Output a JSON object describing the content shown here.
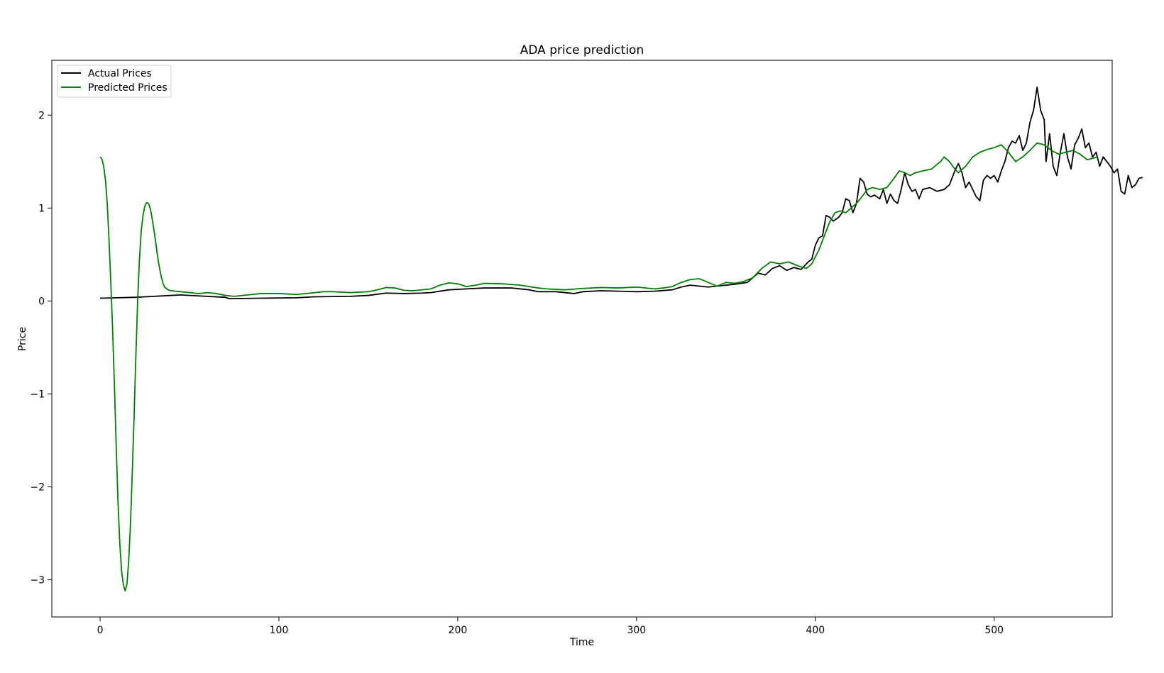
{
  "chart_data": {
    "type": "line",
    "title": "ADA price prediction",
    "xlabel": "Time",
    "ylabel": "Price",
    "xlim": [
      -27,
      566
    ],
    "ylim": [
      -3.4,
      2.59
    ],
    "xticks": [
      0,
      100,
      200,
      300,
      400,
      500
    ],
    "yticks": [
      -3,
      -2,
      -1,
      0,
      1,
      2
    ],
    "xtick_labels": [
      "0",
      "100",
      "200",
      "300",
      "400",
      "500"
    ],
    "ytick_labels": [
      "−3",
      "−2",
      "−1",
      "0",
      "1",
      "2"
    ],
    "grid": false,
    "legend_position": "top-left",
    "series": [
      {
        "name": "Actual Prices",
        "color": "#000000",
        "points": [
          [
            0,
            0.03
          ],
          [
            10,
            0.035
          ],
          [
            20,
            0.04
          ],
          [
            30,
            0.05
          ],
          [
            40,
            0.06
          ],
          [
            45,
            0.065
          ],
          [
            55,
            0.055
          ],
          [
            70,
            0.04
          ],
          [
            72,
            0.025
          ],
          [
            90,
            0.03
          ],
          [
            110,
            0.035
          ],
          [
            120,
            0.045
          ],
          [
            140,
            0.05
          ],
          [
            150,
            0.06
          ],
          [
            160,
            0.085
          ],
          [
            170,
            0.08
          ],
          [
            180,
            0.085
          ],
          [
            185,
            0.09
          ],
          [
            195,
            0.12
          ],
          [
            205,
            0.13
          ],
          [
            215,
            0.14
          ],
          [
            230,
            0.14
          ],
          [
            240,
            0.12
          ],
          [
            245,
            0.1
          ],
          [
            255,
            0.1
          ],
          [
            265,
            0.08
          ],
          [
            270,
            0.1
          ],
          [
            280,
            0.11
          ],
          [
            290,
            0.105
          ],
          [
            300,
            0.1
          ],
          [
            310,
            0.105
          ],
          [
            320,
            0.12
          ],
          [
            325,
            0.15
          ],
          [
            330,
            0.17
          ],
          [
            340,
            0.15
          ],
          [
            350,
            0.17
          ],
          [
            355,
            0.18
          ],
          [
            362,
            0.2
          ],
          [
            368,
            0.3
          ],
          [
            372,
            0.28
          ],
          [
            376,
            0.35
          ],
          [
            380,
            0.38
          ],
          [
            384,
            0.33
          ],
          [
            388,
            0.36
          ],
          [
            392,
            0.34
          ],
          [
            396,
            0.42
          ],
          [
            398,
            0.45
          ],
          [
            400,
            0.6
          ],
          [
            402,
            0.68
          ],
          [
            404,
            0.7
          ],
          [
            406,
            0.92
          ],
          [
            408,
            0.9
          ],
          [
            410,
            0.86
          ],
          [
            413,
            0.9
          ],
          [
            415,
            0.95
          ],
          [
            417,
            1.1
          ],
          [
            419,
            1.08
          ],
          [
            421,
            0.95
          ],
          [
            423,
            1.05
          ],
          [
            425,
            1.32
          ],
          [
            427,
            1.28
          ],
          [
            429,
            1.15
          ],
          [
            431,
            1.12
          ],
          [
            433,
            1.14
          ],
          [
            436,
            1.1
          ],
          [
            438,
            1.2
          ],
          [
            440,
            1.05
          ],
          [
            442,
            1.15
          ],
          [
            444,
            1.08
          ],
          [
            446,
            1.05
          ],
          [
            448,
            1.2
          ],
          [
            450,
            1.38
          ],
          [
            452,
            1.25
          ],
          [
            454,
            1.18
          ],
          [
            456,
            1.2
          ],
          [
            458,
            1.1
          ],
          [
            460,
            1.2
          ],
          [
            464,
            1.22
          ],
          [
            468,
            1.18
          ],
          [
            472,
            1.2
          ],
          [
            475,
            1.25
          ],
          [
            478,
            1.4
          ],
          [
            480,
            1.48
          ],
          [
            482,
            1.38
          ],
          [
            484,
            1.22
          ],
          [
            486,
            1.28
          ],
          [
            488,
            1.2
          ],
          [
            490,
            1.12
          ],
          [
            492,
            1.08
          ],
          [
            494,
            1.3
          ],
          [
            496,
            1.35
          ],
          [
            498,
            1.32
          ],
          [
            500,
            1.35
          ],
          [
            502,
            1.28
          ],
          [
            504,
            1.4
          ],
          [
            506,
            1.5
          ],
          [
            508,
            1.65
          ],
          [
            510,
            1.72
          ],
          [
            512,
            1.7
          ],
          [
            514,
            1.78
          ],
          [
            516,
            1.62
          ],
          [
            518,
            1.7
          ],
          [
            520,
            1.92
          ],
          [
            522,
            2.05
          ],
          [
            524,
            2.3
          ],
          [
            526,
            2.05
          ],
          [
            528,
            1.95
          ],
          [
            529,
            1.5
          ],
          [
            531,
            1.8
          ],
          [
            533,
            1.45
          ],
          [
            535,
            1.35
          ],
          [
            537,
            1.6
          ],
          [
            539,
            1.8
          ],
          [
            541,
            1.55
          ],
          [
            543,
            1.42
          ],
          [
            545,
            1.68
          ],
          [
            547,
            1.75
          ],
          [
            549,
            1.85
          ],
          [
            551,
            1.65
          ],
          [
            553,
            1.7
          ],
          [
            555,
            1.55
          ],
          [
            557,
            1.6
          ],
          [
            559,
            1.45
          ],
          [
            561,
            1.55
          ],
          [
            563,
            1.5
          ],
          [
            565,
            1.45
          ],
          [
            567,
            1.38
          ],
          [
            569,
            1.42
          ],
          [
            571,
            1.18
          ],
          [
            573,
            1.15
          ],
          [
            575,
            1.35
          ],
          [
            577,
            1.22
          ],
          [
            579,
            1.25
          ],
          [
            581,
            1.32
          ],
          [
            583,
            1.33
          ]
        ]
      },
      {
        "name": "Predicted Prices",
        "color": "#008000",
        "points": [
          [
            0,
            1.55
          ],
          [
            1,
            1.53
          ],
          [
            2,
            1.45
          ],
          [
            3,
            1.3
          ],
          [
            4,
            1.05
          ],
          [
            5,
            0.65
          ],
          [
            6,
            0.2
          ],
          [
            7,
            -0.3
          ],
          [
            8,
            -0.9
          ],
          [
            9,
            -1.55
          ],
          [
            10,
            -2.15
          ],
          [
            11,
            -2.6
          ],
          [
            12,
            -2.9
          ],
          [
            13,
            -3.05
          ],
          [
            14,
            -3.12
          ],
          [
            15,
            -3.05
          ],
          [
            16,
            -2.8
          ],
          [
            17,
            -2.4
          ],
          [
            18,
            -1.85
          ],
          [
            19,
            -1.25
          ],
          [
            20,
            -0.6
          ],
          [
            21,
            0.0
          ],
          [
            22,
            0.45
          ],
          [
            23,
            0.75
          ],
          [
            24,
            0.92
          ],
          [
            25,
            1.02
          ],
          [
            26,
            1.06
          ],
          [
            27,
            1.05
          ],
          [
            28,
            1.0
          ],
          [
            29,
            0.9
          ],
          [
            30,
            0.78
          ],
          [
            31,
            0.65
          ],
          [
            32,
            0.5
          ],
          [
            33,
            0.38
          ],
          [
            34,
            0.28
          ],
          [
            35,
            0.2
          ],
          [
            36,
            0.15
          ],
          [
            38,
            0.12
          ],
          [
            40,
            0.11
          ],
          [
            45,
            0.1
          ],
          [
            50,
            0.09
          ],
          [
            55,
            0.08
          ],
          [
            60,
            0.09
          ],
          [
            65,
            0.08
          ],
          [
            70,
            0.06
          ],
          [
            75,
            0.05
          ],
          [
            80,
            0.06
          ],
          [
            85,
            0.07
          ],
          [
            90,
            0.08
          ],
          [
            100,
            0.08
          ],
          [
            110,
            0.07
          ],
          [
            120,
            0.09
          ],
          [
            125,
            0.1
          ],
          [
            130,
            0.1
          ],
          [
            140,
            0.09
          ],
          [
            150,
            0.1
          ],
          [
            155,
            0.12
          ],
          [
            160,
            0.145
          ],
          [
            165,
            0.14
          ],
          [
            170,
            0.115
          ],
          [
            175,
            0.11
          ],
          [
            185,
            0.13
          ],
          [
            190,
            0.17
          ],
          [
            195,
            0.195
          ],
          [
            200,
            0.185
          ],
          [
            205,
            0.155
          ],
          [
            210,
            0.17
          ],
          [
            215,
            0.19
          ],
          [
            225,
            0.185
          ],
          [
            235,
            0.17
          ],
          [
            245,
            0.14
          ],
          [
            250,
            0.13
          ],
          [
            260,
            0.12
          ],
          [
            270,
            0.135
          ],
          [
            280,
            0.145
          ],
          [
            290,
            0.14
          ],
          [
            300,
            0.15
          ],
          [
            310,
            0.13
          ],
          [
            315,
            0.14
          ],
          [
            320,
            0.155
          ],
          [
            325,
            0.2
          ],
          [
            330,
            0.23
          ],
          [
            335,
            0.24
          ],
          [
            340,
            0.2
          ],
          [
            345,
            0.16
          ],
          [
            350,
            0.2
          ],
          [
            355,
            0.19
          ],
          [
            360,
            0.21
          ],
          [
            365,
            0.25
          ],
          [
            370,
            0.35
          ],
          [
            375,
            0.42
          ],
          [
            380,
            0.4
          ],
          [
            385,
            0.42
          ],
          [
            390,
            0.38
          ],
          [
            395,
            0.35
          ],
          [
            398,
            0.4
          ],
          [
            402,
            0.55
          ],
          [
            405,
            0.7
          ],
          [
            408,
            0.85
          ],
          [
            411,
            0.95
          ],
          [
            414,
            0.97
          ],
          [
            417,
            0.95
          ],
          [
            420,
            1.0
          ],
          [
            423,
            1.05
          ],
          [
            426,
            1.12
          ],
          [
            429,
            1.2
          ],
          [
            432,
            1.22
          ],
          [
            436,
            1.2
          ],
          [
            440,
            1.22
          ],
          [
            444,
            1.32
          ],
          [
            447,
            1.4
          ],
          [
            450,
            1.38
          ],
          [
            453,
            1.35
          ],
          [
            456,
            1.38
          ],
          [
            460,
            1.4
          ],
          [
            465,
            1.42
          ],
          [
            470,
            1.5
          ],
          [
            472,
            1.55
          ],
          [
            475,
            1.5
          ],
          [
            478,
            1.42
          ],
          [
            480,
            1.38
          ],
          [
            484,
            1.45
          ],
          [
            488,
            1.55
          ],
          [
            492,
            1.6
          ],
          [
            496,
            1.63
          ],
          [
            500,
            1.65
          ],
          [
            504,
            1.68
          ],
          [
            508,
            1.6
          ],
          [
            512,
            1.5
          ],
          [
            516,
            1.55
          ],
          [
            520,
            1.62
          ],
          [
            524,
            1.7
          ],
          [
            528,
            1.68
          ],
          [
            532,
            1.62
          ],
          [
            536,
            1.58
          ],
          [
            540,
            1.6
          ],
          [
            544,
            1.62
          ],
          [
            548,
            1.58
          ],
          [
            552,
            1.52
          ],
          [
            556,
            1.54
          ],
          [
            558,
            1.55
          ]
        ]
      }
    ]
  }
}
